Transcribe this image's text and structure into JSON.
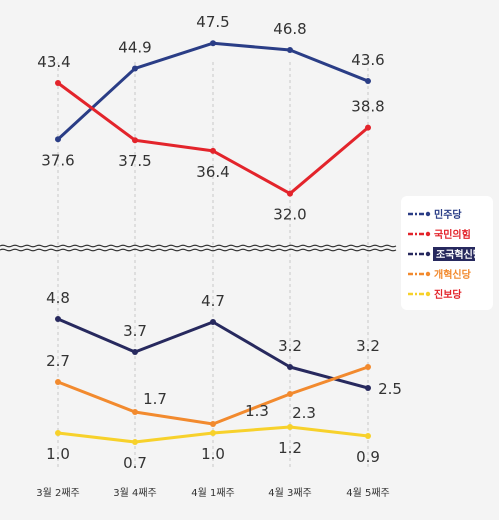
{
  "chart_data": {
    "type": "line",
    "categories": [
      "3월 2째주",
      "3월 4째주",
      "4월 1째주",
      "4월 3째주",
      "4월 5째주"
    ],
    "axis_break": true,
    "grid": "vertical dashed",
    "legend_position": "right",
    "series": [
      {
        "name": "민주당",
        "color": "#2a3d86",
        "values": [
          37.6,
          44.9,
          47.5,
          46.8,
          43.6
        ],
        "panel": "upper"
      },
      {
        "name": "국민의힘",
        "color": "#e3242b",
        "values": [
          43.4,
          37.5,
          36.4,
          32.0,
          38.8
        ],
        "panel": "upper"
      },
      {
        "name": "조국혁신당",
        "color": "#27295e",
        "values": [
          4.8,
          3.7,
          4.7,
          3.2,
          2.5
        ],
        "panel": "lower"
      },
      {
        "name": "개혁신당",
        "color": "#f28a2e",
        "values": [
          2.7,
          1.7,
          1.3,
          2.3,
          3.2
        ],
        "panel": "lower"
      },
      {
        "name": "진보당",
        "color": "#f7d12b",
        "values": [
          1.0,
          0.7,
          1.0,
          1.2,
          0.9
        ],
        "panel": "lower"
      }
    ],
    "value_labels": {
      "민주당": [
        "37.6",
        "44.9",
        "47.5",
        "46.8",
        "43.6"
      ],
      "국민의힘": [
        "43.4",
        "37.5",
        "36.4",
        "32.0",
        "38.8"
      ],
      "조국혁신당": [
        "4.8",
        "3.7",
        "4.7",
        "3.2",
        "2.5"
      ],
      "개혁신당": [
        "2.7",
        "1.7",
        "1.3",
        "2.3",
        "3.2"
      ],
      "진보당": [
        "1.0",
        "0.7",
        "1.0",
        "1.2",
        "0.9"
      ]
    }
  }
}
